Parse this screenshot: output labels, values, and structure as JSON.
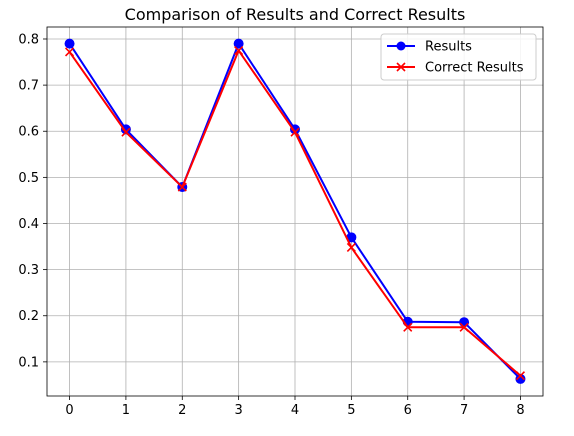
{
  "chart_data": {
    "type": "line",
    "title": "Comparison of Results and Correct Results",
    "xlabel": "",
    "ylabel": "",
    "x": [
      0,
      1,
      2,
      3,
      4,
      5,
      6,
      7,
      8
    ],
    "xlim": [
      -0.4,
      8.4
    ],
    "ylim": [
      0.026,
      0.826
    ],
    "x_ticks": [
      0,
      1,
      2,
      3,
      4,
      5,
      6,
      7,
      8
    ],
    "y_ticks": [
      0.1,
      0.2,
      0.3,
      0.4,
      0.5,
      0.6,
      0.7,
      0.8
    ],
    "grid": true,
    "legend_position": "top-right",
    "series": [
      {
        "name": "Results",
        "color": "#0000ff",
        "marker": "circle",
        "values": [
          0.79,
          0.604,
          0.479,
          0.79,
          0.604,
          0.37,
          0.187,
          0.186,
          0.063
        ]
      },
      {
        "name": "Correct Results",
        "color": "#ff0000",
        "marker": "x",
        "values": [
          0.772,
          0.598,
          0.479,
          0.775,
          0.598,
          0.348,
          0.175,
          0.175,
          0.07
        ]
      }
    ]
  }
}
